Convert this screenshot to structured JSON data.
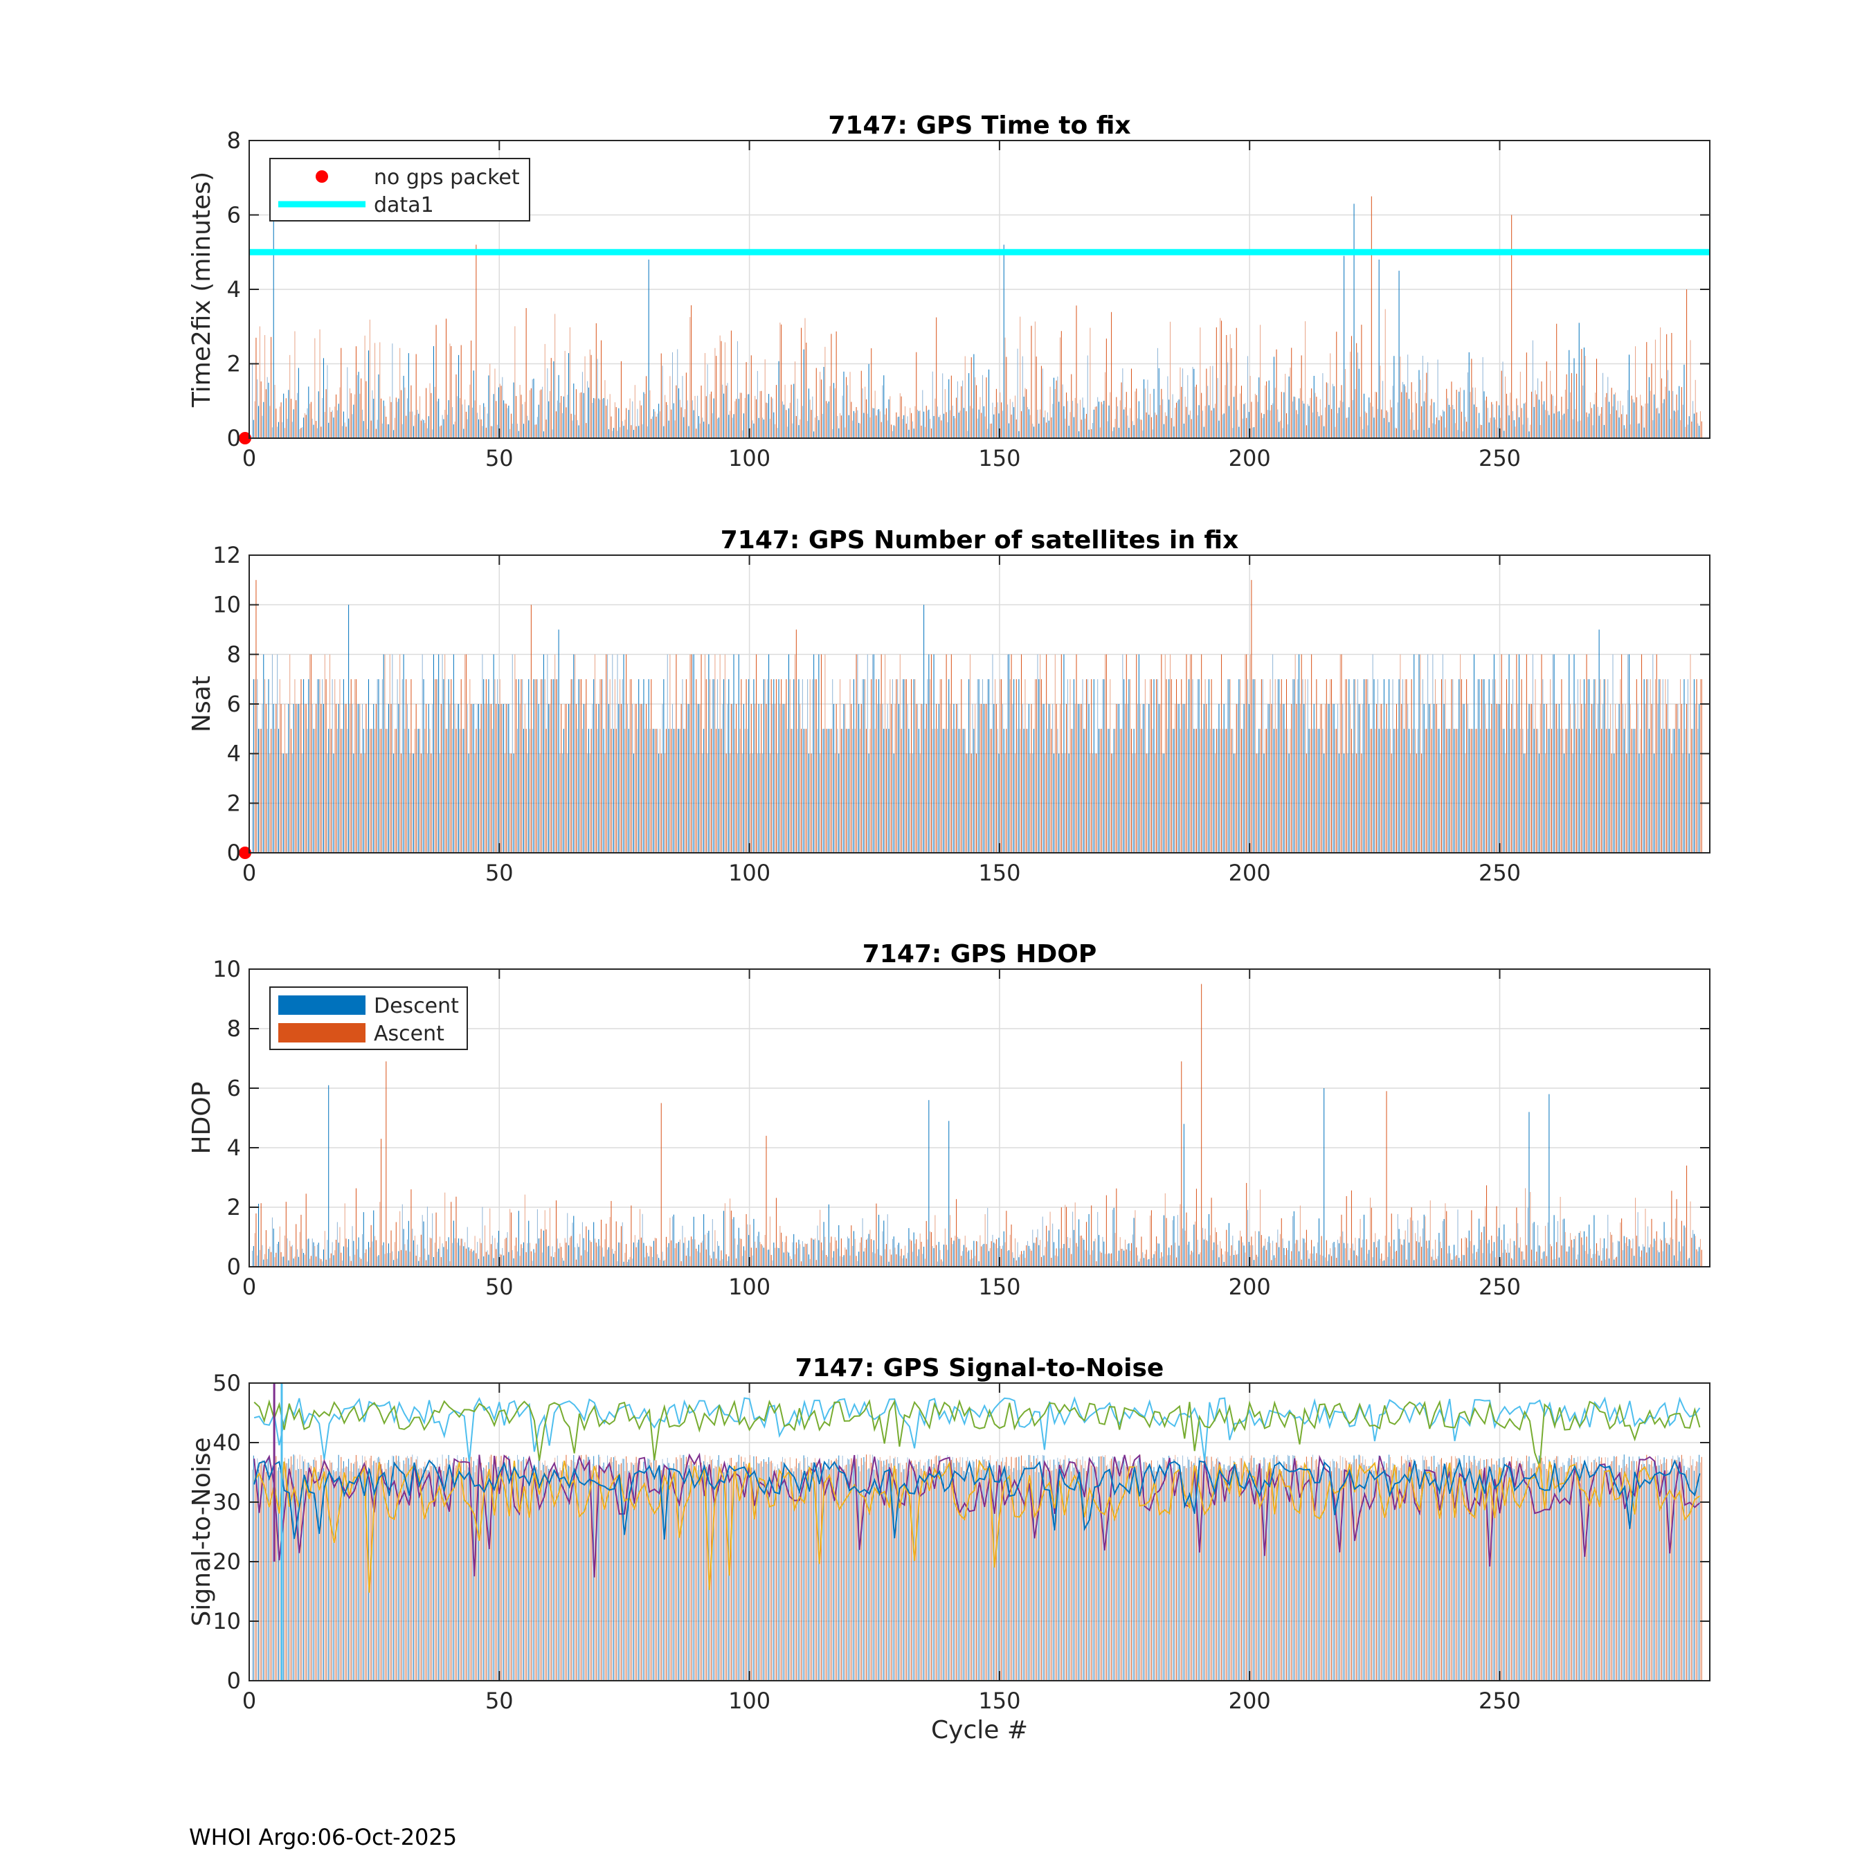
{
  "footer": "WHOI Argo:06-Oct-2025",
  "colors": {
    "descent": "#0072BD",
    "ascent": "#D95319",
    "descent_light": "#8FB4D6",
    "ascent_light": "#E8A487",
    "threshold": "#00FFFF",
    "no_packet": "#FF0000",
    "snr_lines": [
      "#4DBEEE",
      "#77AC30",
      "#7E2F8E",
      "#EDB120",
      "#0072BD",
      "#D95319"
    ]
  },
  "chart_data": [
    {
      "type": "bar",
      "title": "7147: GPS Time to fix",
      "ylabel": "Time2fix (minutes)",
      "xlabel": "",
      "xlim": [
        0,
        292
      ],
      "ylim": [
        0,
        8
      ],
      "xticks": [
        0,
        50,
        100,
        150,
        200,
        250
      ],
      "yticks": [
        0,
        2,
        4,
        6,
        8
      ],
      "grid": true,
      "legend": {
        "placement": "top-left",
        "entries": [
          "no gps packet",
          "data1"
        ]
      },
      "threshold": 5,
      "no_packet": [
        [
          0,
          0
        ]
      ],
      "spikes": [
        [
          1,
          2.7
        ],
        [
          5,
          6.0
        ],
        [
          45,
          5.2
        ],
        [
          80,
          4.8
        ],
        [
          151,
          5.2
        ],
        [
          219,
          4.9
        ],
        [
          221,
          6.3
        ],
        [
          224,
          6.5
        ],
        [
          226,
          4.8
        ],
        [
          230,
          4.5
        ],
        [
          252,
          6.0
        ],
        [
          266,
          3.1
        ],
        [
          287,
          4.0
        ]
      ],
      "series": [
        {
          "name": "Descent",
          "base": 0.9,
          "amp": 1.6
        },
        {
          "name": "Ascent",
          "base": 1.2,
          "amp": 2.3
        }
      ]
    },
    {
      "type": "bar",
      "title": "7147: GPS Number of satellites in fix",
      "ylabel": "Nsat",
      "xlabel": "",
      "xlim": [
        0,
        292
      ],
      "ylim": [
        0,
        12
      ],
      "xticks": [
        0,
        50,
        100,
        150,
        200,
        250
      ],
      "yticks": [
        0,
        2,
        4,
        6,
        8,
        10,
        12
      ],
      "grid": true,
      "no_packet": [
        [
          0,
          0
        ]
      ],
      "spikes": [
        [
          1,
          11
        ],
        [
          20,
          10
        ],
        [
          56,
          10
        ],
        [
          135,
          10
        ],
        [
          200,
          11
        ],
        [
          109,
          9
        ],
        [
          62,
          9
        ],
        [
          270,
          9
        ]
      ],
      "series": [
        {
          "name": "Descent",
          "base": 4,
          "amp": 4
        },
        {
          "name": "Ascent",
          "base": 4,
          "amp": 4
        }
      ]
    },
    {
      "type": "bar",
      "title": "7147: GPS HDOP",
      "ylabel": "HDOP",
      "xlabel": "",
      "xlim": [
        0,
        292
      ],
      "ylim": [
        0,
        10
      ],
      "xticks": [
        0,
        50,
        100,
        150,
        200,
        250
      ],
      "yticks": [
        0,
        2,
        4,
        6,
        8,
        10
      ],
      "grid": true,
      "legend": {
        "placement": "top-left",
        "entries": [
          "Descent",
          "Ascent"
        ]
      },
      "spikes": [
        [
          16,
          6.1
        ],
        [
          27,
          6.9
        ],
        [
          26,
          4.3
        ],
        [
          82,
          5.5
        ],
        [
          103,
          4.4
        ],
        [
          136,
          5.6
        ],
        [
          140,
          4.9
        ],
        [
          186,
          6.9
        ],
        [
          187,
          4.8
        ],
        [
          190,
          9.5
        ],
        [
          215,
          6.0
        ],
        [
          227,
          5.9
        ],
        [
          260,
          5.8
        ],
        [
          256,
          5.2
        ],
        [
          287,
          3.4
        ]
      ],
      "series": [
        {
          "name": "Descent",
          "base": 0.8,
          "amp": 1.4
        },
        {
          "name": "Ascent",
          "base": 0.9,
          "amp": 1.8
        }
      ]
    },
    {
      "type": "line",
      "title": "7147: GPS Signal-to-Noise",
      "ylabel": "Signal-to-Noise",
      "xlabel": "Cycle #",
      "xlim": [
        0,
        292
      ],
      "ylim": [
        0,
        50
      ],
      "xticks": [
        0,
        50,
        100,
        150,
        200,
        250
      ],
      "yticks": [
        0,
        10,
        20,
        30,
        40,
        50
      ],
      "grid": true,
      "bars_level": 38,
      "series": [
        {
          "name": "",
          "mean": 45,
          "spread": 2.5
        },
        {
          "name": "",
          "mean": 44.5,
          "spread": 2.5
        },
        {
          "name": "",
          "mean": 33,
          "spread": 5
        },
        {
          "name": "",
          "mean": 32,
          "spread": 5
        },
        {
          "name": "",
          "mean": 34,
          "spread": 3
        }
      ]
    }
  ]
}
